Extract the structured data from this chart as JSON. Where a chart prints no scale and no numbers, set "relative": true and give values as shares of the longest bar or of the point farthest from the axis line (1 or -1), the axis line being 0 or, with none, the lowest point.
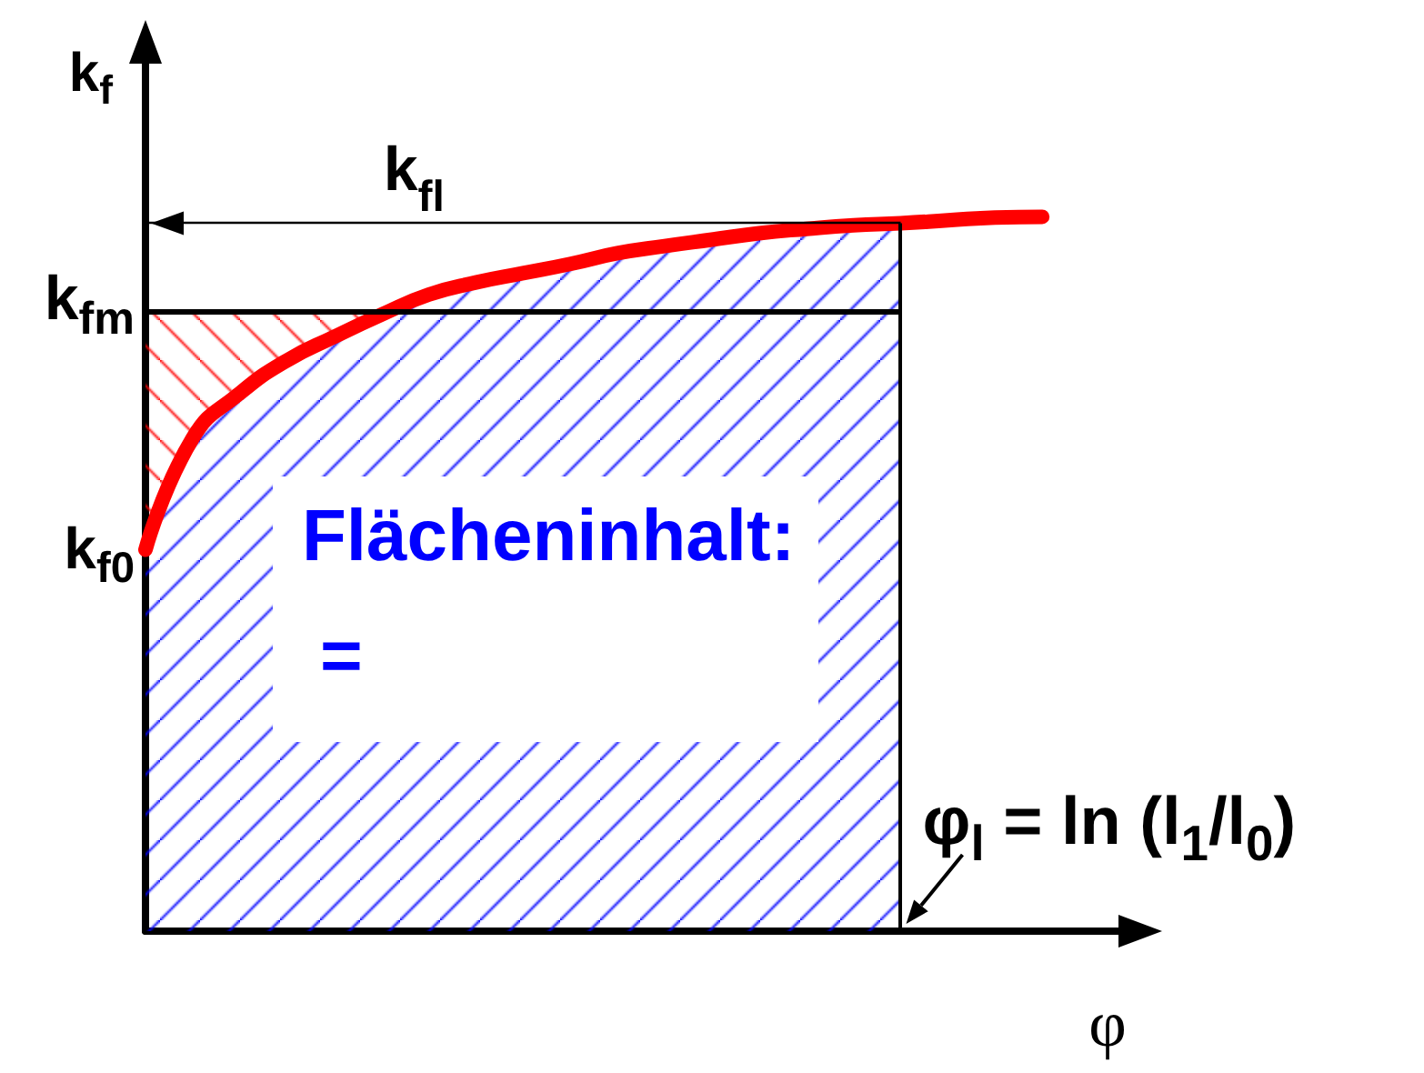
{
  "chart_data": {
    "type": "line",
    "relative": true,
    "xlabel": "φ",
    "ylabel": "k$_{f}$",
    "categories": [
      null,
      null,
      null,
      null,
      null,
      null,
      null,
      null,
      null,
      null,
      null,
      null,
      null,
      null,
      null,
      null,
      null,
      null,
      null,
      null,
      null,
      null
    ],
    "series": [
      {
        "type": "area",
        "color": "#0000ff",
        "values": [
          0.534,
          0.69,
          0.753,
          0.799,
          0.832,
          0.863,
          0.891,
          0.908,
          0.921,
          0.934,
          0.949,
          0.959,
          0.968,
          0.977,
          0.983,
          0.988,
          0.991,
          null,
          null,
          null,
          null,
          null
        ]
      },
      {
        "type": "line",
        "color": "#ff0000",
        "values": [
          0.534,
          0.69,
          0.753,
          0.799,
          0.832,
          0.863,
          0.891,
          0.908,
          0.921,
          0.934,
          0.949,
          0.959,
          0.968,
          0.977,
          0.983,
          0.988,
          0.991,
          0.995,
          0.999,
          1.0,
          null,
          null
        ],
        "lower": [
          0.534,
          0.69,
          0.753,
          0.799,
          0.832,
          0.863,
          null,
          null,
          null,
          null,
          null,
          null,
          null,
          null,
          null,
          null,
          null,
          null,
          null,
          null,
          null,
          null
        ],
        "upper": [
          0.868,
          0.868,
          0.868,
          0.868,
          0.868,
          0.868,
          null,
          null,
          null,
          null,
          null,
          null,
          null,
          null,
          null,
          null,
          null,
          null,
          null,
          null,
          null,
          null
        ]
      }
    ],
    "ref_lines": [
      {
        "axis": "y",
        "value": 0.868,
        "label": "k$_{fm}$"
      },
      {
        "axis": "y",
        "value": 0.991,
        "label": "k$_{fl}$"
      }
    ],
    "annotations": [
      "Flächeninhalt:",
      "=",
      "k$_{f0}$",
      "φ$_{l}$ = ln (l$_{1}$/l$_{0}$)"
    ],
    "marker": "none",
    "grid": false
  }
}
